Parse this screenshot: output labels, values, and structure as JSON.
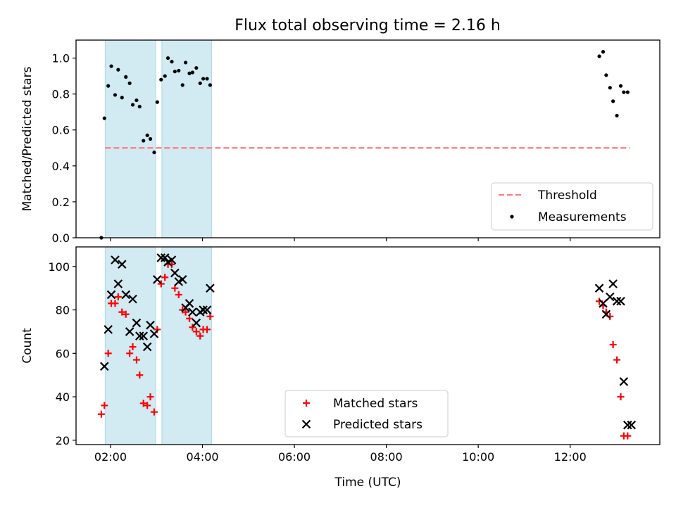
{
  "title": "Flux total observing time = 2.16 h",
  "colors": {
    "span": "#add8e6",
    "threshold": "#ff7b7b",
    "measure": "#000000",
    "matched": "#ff0000",
    "predicted": "#000000"
  },
  "chart_data": [
    {
      "type": "scatter",
      "ylabel": "Matched/Predicted stars",
      "ylim": [
        0,
        1.1
      ],
      "yticks": [
        "0.0",
        "0.2",
        "0.4",
        "0.6",
        "0.8",
        "1.0"
      ],
      "xlim_hours": [
        1.25,
        13.95
      ],
      "xticks": [
        "02:00",
        "04:00",
        "06:00",
        "08:00",
        "10:00",
        "12:00"
      ],
      "shaded_intervals": [
        [
          "01:53",
          "02:59"
        ],
        [
          "03:07",
          "04:12"
        ]
      ],
      "threshold": {
        "label": "Threshold",
        "value": 0.5,
        "x_range": [
          "01:53",
          "13:18"
        ],
        "style": "dashed"
      },
      "legend": {
        "location": "lower right",
        "entries": [
          "Threshold",
          "Measurements"
        ]
      },
      "series": [
        {
          "name": "Measurements",
          "x": [
            "01:48",
            "01:52",
            "01:57",
            "02:01",
            "02:06",
            "02:10",
            "02:15",
            "02:20",
            "02:25",
            "02:29",
            "02:34",
            "02:38",
            "02:43",
            "02:48",
            "02:52",
            "02:57",
            "03:01",
            "03:06",
            "03:11",
            "03:15",
            "03:20",
            "03:24",
            "03:29",
            "03:34",
            "03:38",
            "03:43",
            "03:47",
            "03:52",
            "03:57",
            "04:01",
            "04:06",
            "04:10",
            "12:38",
            "12:43",
            "12:47",
            "12:52",
            "12:56",
            "13:01",
            "13:06",
            "13:10",
            "13:15"
          ],
          "y": [
            0.0,
            0.665,
            0.845,
            0.955,
            0.795,
            0.935,
            0.78,
            0.895,
            0.86,
            0.74,
            0.765,
            0.73,
            0.54,
            0.57,
            0.55,
            0.475,
            0.755,
            0.88,
            0.9,
            1.0,
            0.98,
            0.925,
            0.93,
            0.85,
            0.975,
            0.915,
            0.92,
            0.945,
            0.86,
            0.885,
            0.885,
            0.85,
            1.01,
            1.035,
            0.905,
            0.835,
            0.76,
            0.68,
            0.845,
            0.81,
            0.81
          ]
        }
      ]
    },
    {
      "type": "scatter",
      "ylabel": "Count",
      "xlabel": "Time (UTC)",
      "ylim": [
        18,
        109
      ],
      "yticks": [
        "20",
        "40",
        "60",
        "80",
        "100"
      ],
      "xlim_hours": [
        1.25,
        13.95
      ],
      "xticks": [
        "02:00",
        "04:00",
        "06:00",
        "08:00",
        "10:00",
        "12:00"
      ],
      "shaded_intervals": [
        [
          "01:53",
          "02:59"
        ],
        [
          "03:07",
          "04:12"
        ]
      ],
      "legend": {
        "location": "lower center",
        "entries": [
          "Matched stars",
          "Predicted stars"
        ]
      },
      "series": [
        {
          "name": "Matched stars",
          "marker": "+",
          "x": [
            "01:48",
            "01:52",
            "01:57",
            "02:01",
            "02:06",
            "02:10",
            "02:15",
            "02:20",
            "02:25",
            "02:29",
            "02:34",
            "02:38",
            "02:43",
            "02:48",
            "02:52",
            "02:57",
            "03:01",
            "03:06",
            "03:11",
            "03:15",
            "03:20",
            "03:24",
            "03:29",
            "03:34",
            "03:38",
            "03:43",
            "03:47",
            "03:52",
            "03:57",
            "04:01",
            "04:06",
            "04:10",
            "12:38",
            "12:43",
            "12:47",
            "12:52",
            "12:56",
            "13:01",
            "13:06",
            "13:10",
            "13:15"
          ],
          "y": [
            32,
            36,
            60,
            83,
            83,
            86,
            79,
            78,
            60,
            63,
            57,
            50,
            37,
            36,
            40,
            33,
            71,
            92,
            95,
            101,
            101,
            90,
            87,
            80,
            79,
            76,
            72,
            70,
            68,
            71,
            71,
            77,
            84,
            82,
            79,
            77,
            64,
            57,
            40,
            22,
            22
          ]
        },
        {
          "name": "Predicted stars",
          "marker": "x",
          "x": [
            "01:52",
            "01:57",
            "02:01",
            "02:06",
            "02:10",
            "02:15",
            "02:20",
            "02:25",
            "02:29",
            "02:34",
            "02:38",
            "02:43",
            "02:48",
            "02:52",
            "02:57",
            "03:01",
            "03:06",
            "03:11",
            "03:15",
            "03:20",
            "03:24",
            "03:29",
            "03:34",
            "03:38",
            "03:43",
            "03:47",
            "03:52",
            "03:57",
            "04:01",
            "04:06",
            "04:10",
            "12:38",
            "12:43",
            "12:47",
            "12:52",
            "12:56",
            "13:01",
            "13:06",
            "13:10",
            "13:15",
            "13:20"
          ],
          "y": [
            54,
            71,
            87,
            103,
            92,
            101,
            87,
            70,
            85,
            74,
            68,
            68,
            63,
            73,
            69,
            94,
            104,
            104,
            102,
            103,
            97,
            93,
            94,
            81,
            83,
            79,
            74,
            79,
            80,
            80,
            90,
            90,
            83,
            78,
            86,
            92,
            84,
            84,
            47,
            27,
            27
          ]
        }
      ]
    }
  ]
}
